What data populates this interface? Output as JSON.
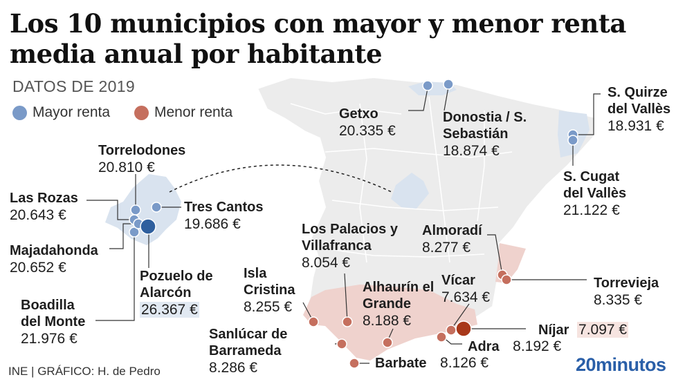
{
  "title": "Los 10 municipios con mayor y menor renta media anual por habitante",
  "subtitle": "DATOS DE 2019",
  "legend": [
    {
      "label": "Mayor renta",
      "color": "#7a9ac8"
    },
    {
      "label": "Menor renta",
      "color": "#c56f5e"
    }
  ],
  "municipalities": [
    {
      "id": "torrelodones",
      "name": "Torrelodones",
      "value": "20.810 €",
      "group": "mayor"
    },
    {
      "id": "las-rozas",
      "name": "Las Rozas",
      "value": "20.643 €",
      "group": "mayor"
    },
    {
      "id": "tres-cantos",
      "name": "Tres Cantos",
      "value": "19.686 €",
      "group": "mayor"
    },
    {
      "id": "majadahonda",
      "name": "Majadahonda",
      "value": "20.652 €",
      "group": "mayor"
    },
    {
      "id": "pozuelo",
      "name": "Pozuelo de Alarcón",
      "value": "26.367 €",
      "group": "mayor",
      "highlight": true
    },
    {
      "id": "boadilla",
      "name": "Boadilla del Monte",
      "value": "21.976 €",
      "group": "mayor"
    },
    {
      "id": "getxo",
      "name": "Getxo",
      "value": "20.335 €",
      "group": "mayor"
    },
    {
      "id": "donostia",
      "name": "Donostia / S. Sebastián",
      "value": "18.874 €",
      "group": "mayor"
    },
    {
      "id": "quirze",
      "name": "S. Quirze del Vallès",
      "value": "18.931 €",
      "group": "mayor"
    },
    {
      "id": "cugat",
      "name": "S. Cugat del Vallès",
      "value": "21.122 €",
      "group": "mayor"
    },
    {
      "id": "palacios",
      "name": "Los Palacios y Villafranca",
      "value": "8.054 €",
      "group": "menor"
    },
    {
      "id": "almoradi",
      "name": "Almoradí",
      "value": "8.277 €",
      "group": "menor"
    },
    {
      "id": "isla-cristina",
      "name": "Isla Cristina",
      "value": "8.255 €",
      "group": "menor"
    },
    {
      "id": "alhaurin",
      "name": "Alhaurín el Grande",
      "value": "8.188 €",
      "group": "menor"
    },
    {
      "id": "vicar",
      "name": "Vícar",
      "value": "7.634 €",
      "group": "menor"
    },
    {
      "id": "torrevieja",
      "name": "Torrevieja",
      "value": "8.335 €",
      "group": "menor"
    },
    {
      "id": "sanlucar",
      "name": "Sanlúcar de Barrameda",
      "value": "8.286 €",
      "group": "menor"
    },
    {
      "id": "nijar",
      "name": "Níjar",
      "value": "7.097 €",
      "group": "menor",
      "highlight": true
    },
    {
      "id": "adra",
      "name": "Adra",
      "value": "8.192 €",
      "group": "menor"
    },
    {
      "id": "barbate",
      "name": "Barbate",
      "value": "8.126 €",
      "group": "menor"
    }
  ],
  "source": "INE  |  GRÁFICO: H. de Pedro",
  "brand": "20minutos",
  "colors": {
    "mayor_dot": "#7a9ac8",
    "mayor_dot_max": "#2f5f9e",
    "menor_dot": "#c56f5e",
    "menor_dot_min": "#a8381a",
    "region_blue": "#d9e3ef",
    "region_red": "#efd2cd",
    "land": "#ececec"
  }
}
